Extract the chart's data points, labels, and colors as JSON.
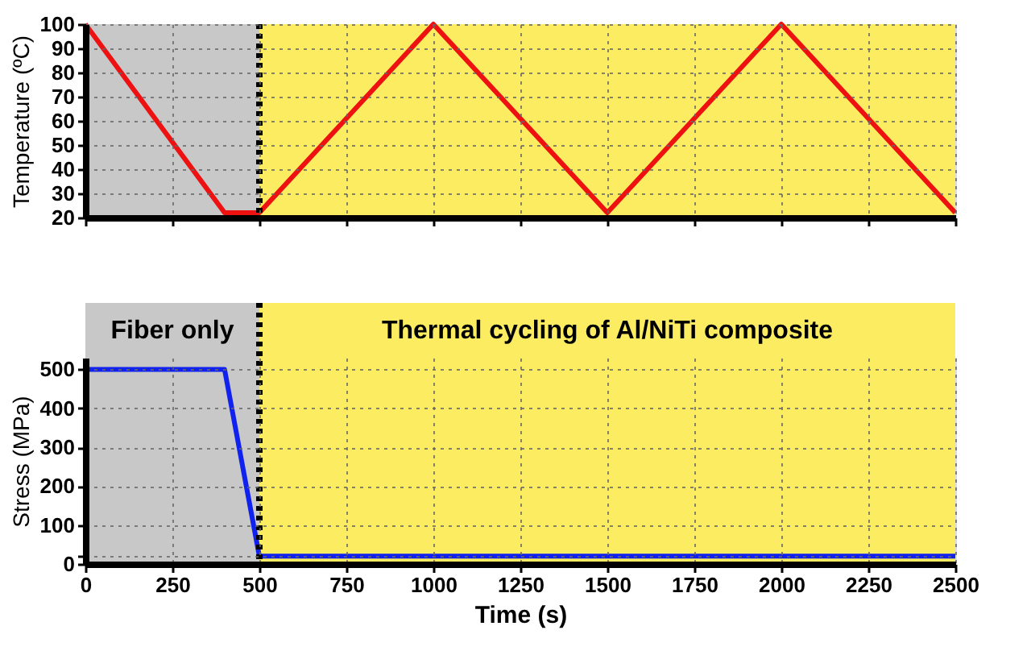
{
  "chart_data": [
    {
      "type": "line",
      "ylabel": "Temperature (ºC)",
      "xlim": [
        0,
        2500
      ],
      "xticks": [
        0,
        250,
        500,
        750,
        1000,
        1250,
        1500,
        1750,
        2000,
        2250,
        2500
      ],
      "ylim": [
        20,
        100
      ],
      "yticks": [
        20,
        30,
        40,
        50,
        60,
        70,
        80,
        90,
        100
      ],
      "tick_labels": "y",
      "grid": true,
      "line_style": "solid",
      "marker": "none",
      "series": [
        {
          "color": "#ee1111",
          "x": [
            0,
            400,
            500,
            1000,
            1500,
            2000,
            2500
          ],
          "values": [
            100,
            22,
            22,
            100,
            22,
            100,
            22
          ]
        }
      ],
      "bands": [
        {
          "axis": "x",
          "from": 0,
          "to": 500,
          "color": "#c8c8c8"
        },
        {
          "axis": "x",
          "from": 500,
          "to": 2500,
          "color": "#fcec62"
        }
      ],
      "ref_lines": [
        {
          "axis": "x",
          "value": 500,
          "color": "#000000",
          "line_style": "dotted"
        }
      ]
    },
    {
      "type": "line",
      "xlabel": "Time (s)",
      "ylabel": "Stress (MPa)",
      "xlim": [
        0,
        2500
      ],
      "xticks": [
        0,
        250,
        500,
        750,
        1000,
        1250,
        1500,
        1750,
        2000,
        2250,
        2500
      ],
      "ylim": [
        0,
        530
      ],
      "yticks": [
        0,
        {
          "value": 20,
          "label": null
        },
        100,
        200,
        300,
        400,
        500
      ],
      "grid": true,
      "line_style": "solid",
      "marker": "none",
      "series": [
        {
          "color": "#1122ee",
          "x": [
            0,
            400,
            500,
            2500
          ],
          "values": [
            500,
            500,
            20,
            20
          ]
        }
      ],
      "bands": [
        {
          "axis": "x",
          "from": 0,
          "to": 500,
          "color": "#c8c8c8",
          "label": "Fiber only"
        },
        {
          "axis": "x",
          "from": 500,
          "to": 2500,
          "color": "#fcec62",
          "label": "Thermal cycling of Al/NiTi composite"
        }
      ],
      "ref_lines": [
        {
          "axis": "x",
          "value": 500,
          "color": "#000000",
          "line_style": "dotted"
        }
      ]
    }
  ]
}
